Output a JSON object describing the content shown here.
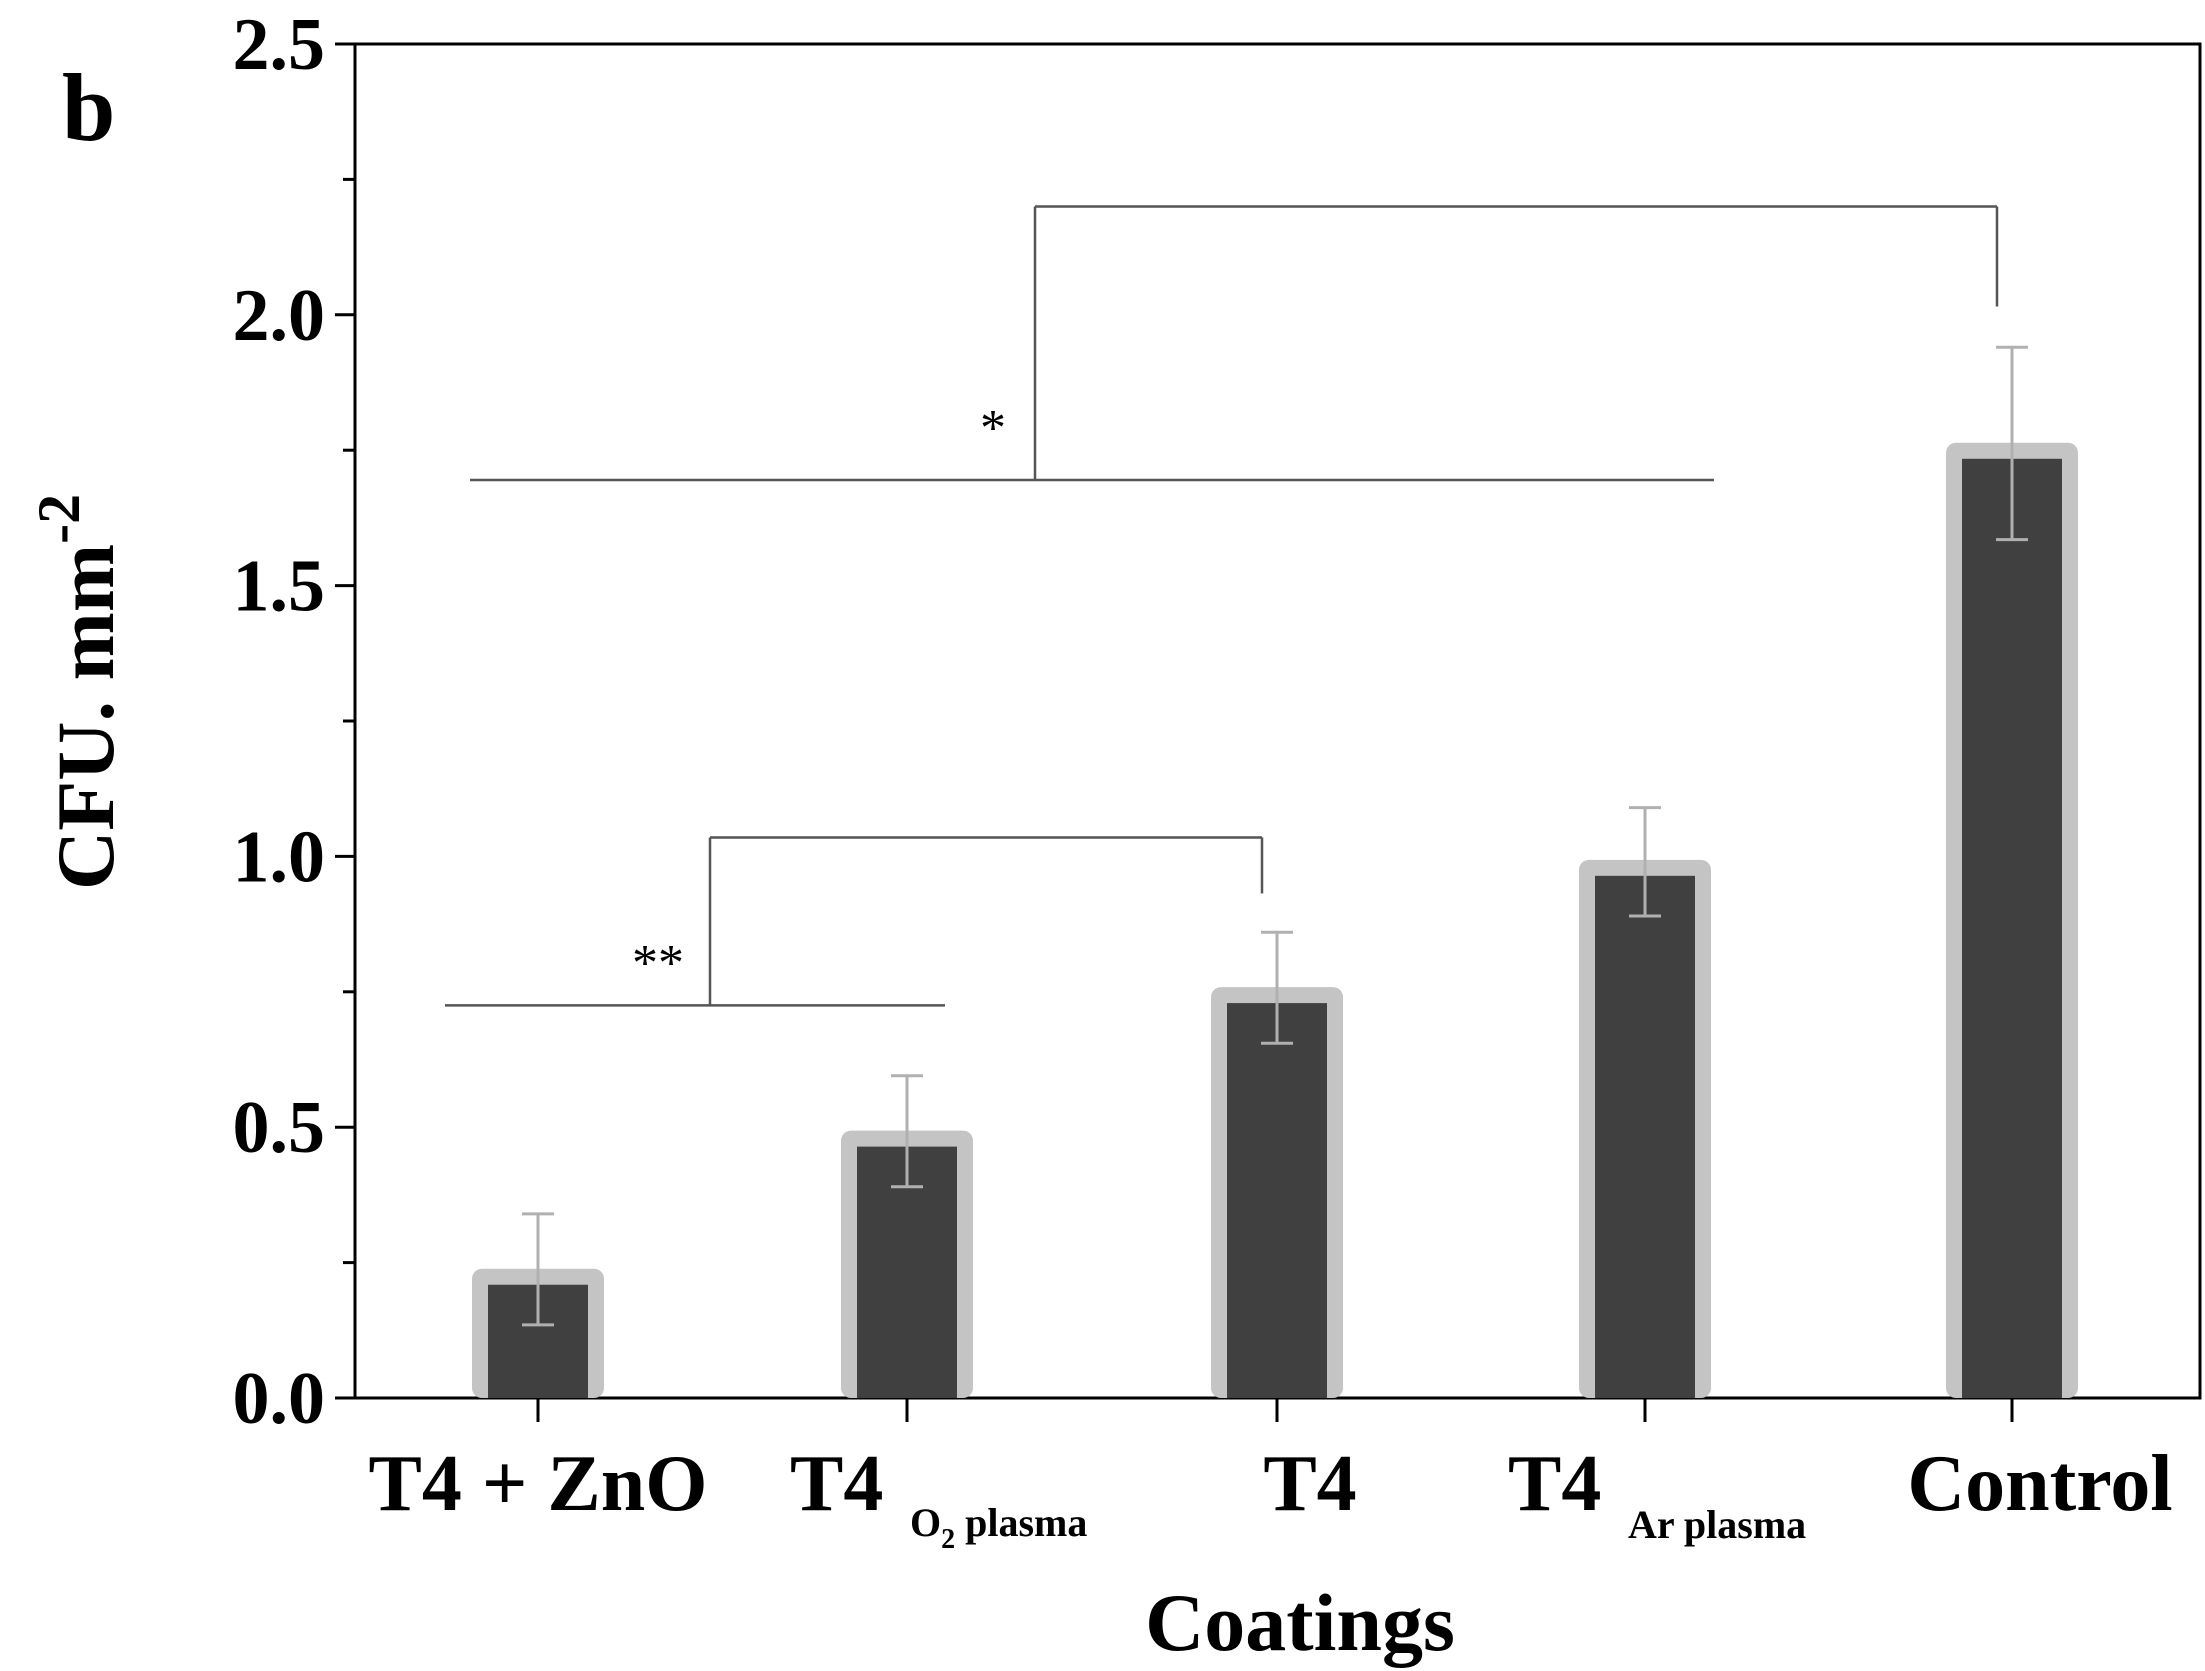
{
  "chart_data": {
    "type": "bar",
    "panel_label": "b",
    "xlabel": "Coatings",
    "ylabel": "CFU. mm",
    "ylabel_superscript": "-2",
    "ylim": [
      0,
      2.5
    ],
    "y_ticks": [
      "0.0",
      "0.5",
      "1.0",
      "1.5",
      "2.0",
      "2.5"
    ],
    "categories": [
      {
        "main": "T4 + ZnO",
        "sub": ""
      },
      {
        "main": "T4",
        "sub": "O",
        "sub_index": "2",
        "sub_rest": " plasma"
      },
      {
        "main": "T4",
        "sub": ""
      },
      {
        "main": "T4",
        "sub": "Ar plasma"
      },
      {
        "main": "Control",
        "sub": ""
      }
    ],
    "values": [
      0.235,
      0.49,
      0.755,
      0.99,
      1.76
    ],
    "error_upper": [
      0.34,
      0.595,
      0.86,
      1.09,
      1.94
    ],
    "error_lower": [
      0.135,
      0.39,
      0.655,
      0.89,
      1.585
    ],
    "significance": [
      {
        "label": "**",
        "from": [
          0,
          1
        ],
        "to": 2,
        "bracket_y": 1.035,
        "base_y": 0.725
      },
      {
        "label": "*",
        "from": [
          0,
          3
        ],
        "to": 4,
        "bracket_y": 2.2,
        "base_y": 1.695
      }
    ],
    "colors": {
      "bar_fill": "#404040",
      "bar_border": "#c4c4c4",
      "error": "#b0b0b0",
      "axis": "#000000",
      "bracket": "#555555"
    }
  }
}
